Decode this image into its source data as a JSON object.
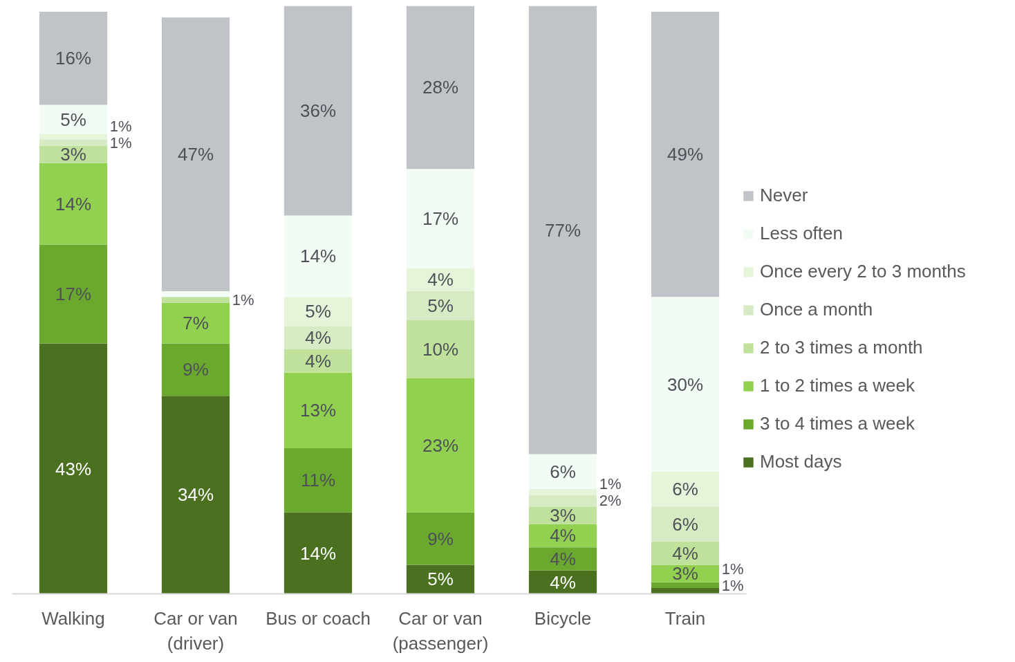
{
  "chart_data": {
    "type": "bar",
    "stacked": true,
    "data_labels": true,
    "legend": "right",
    "grid": false,
    "categories": [
      "Walking",
      "Car or van\n(driver)",
      "Bus or coach",
      "Car or van\n(passenger)",
      "Bicycle",
      "Train"
    ],
    "series": [
      {
        "name": "Most days",
        "color": "#4a7020",
        "values": [
          43,
          34,
          14,
          5,
          4,
          1
        ],
        "value_labels": [
          "43%",
          "34%",
          "14%",
          "5%",
          "4%",
          "1%"
        ]
      },
      {
        "name": "3 to 4 times a week",
        "color": "#6aa82e",
        "values": [
          17,
          9,
          11,
          9,
          4,
          1
        ],
        "value_labels": [
          "17%",
          "9%",
          "11%",
          "9%",
          "4%",
          "1%"
        ]
      },
      {
        "name": "1 to 2 times a week",
        "color": "#92d050",
        "values": [
          14,
          7,
          13,
          23,
          4,
          3
        ],
        "value_labels": [
          "14%",
          "7%",
          "13%",
          "23%",
          "4%",
          "3%"
        ]
      },
      {
        "name": "2 to 3 times a month",
        "color": "#c0e19b",
        "values": [
          3,
          1,
          4,
          10,
          3,
          4
        ],
        "value_labels": [
          "3%",
          "1%",
          "4%",
          "10%",
          "3%",
          "4%"
        ]
      },
      {
        "name": "Once a month",
        "color": "#d6ebc4",
        "values": [
          1,
          0,
          4,
          5,
          2,
          6
        ],
        "value_labels": [
          "1%",
          null,
          "4%",
          "5%",
          "2%",
          "6%"
        ]
      },
      {
        "name": "Once every 2 to 3 months",
        "color": "#e6f4da",
        "values": [
          1,
          0,
          5,
          4,
          1,
          6
        ],
        "value_labels": [
          "1%",
          null,
          "5%",
          "4%",
          "1%",
          "6%"
        ]
      },
      {
        "name": "Less often",
        "color": "#f2fcf4",
        "values": [
          5,
          1,
          14,
          17,
          6,
          30
        ],
        "value_labels": [
          "5%",
          null,
          "14%",
          "17%",
          "6%",
          "30%"
        ]
      },
      {
        "name": "Never",
        "color": "#c0c3c8",
        "values": [
          16,
          47,
          36,
          28,
          77,
          49
        ],
        "value_labels": [
          "16%",
          "47%",
          "36%",
          "28%",
          "77%",
          "49%"
        ]
      }
    ]
  }
}
